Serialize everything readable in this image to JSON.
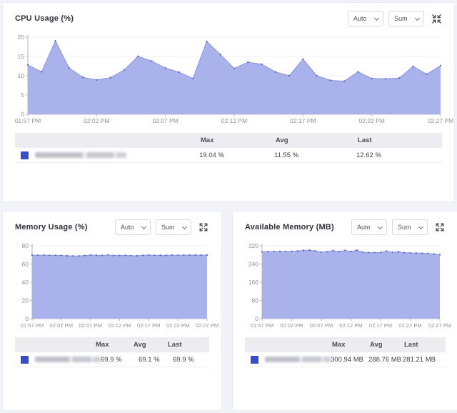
{
  "controls": {
    "interval_label": "Auto",
    "aggregation_label": "Sum"
  },
  "table_headers": {
    "max": "Max",
    "avg": "Avg",
    "last": "Last"
  },
  "accent": {
    "legend_swatch": "#3b4cc9",
    "area_fill": "#a9b2ea",
    "area_line": "#8793dd",
    "point_dot": "#5f6dbe"
  },
  "chart_data": [
    {
      "type": "area",
      "title": "CPU Usage (%)",
      "ylabel": "",
      "xlabel": "",
      "ylim": [
        0,
        20
      ],
      "yticks": [
        0,
        5,
        10,
        15,
        20
      ],
      "x_labels": [
        "01:57 PM",
        "02:02 PM",
        "02:07 PM",
        "02:12 PM",
        "02:17 PM",
        "02:22 PM",
        "02:27 PM"
      ],
      "series_name_blurred": true,
      "values": [
        12.8,
        11.0,
        19.04,
        12.0,
        9.6,
        8.9,
        9.5,
        11.5,
        15.0,
        13.8,
        12.0,
        10.9,
        9.3,
        18.9,
        15.5,
        11.9,
        13.5,
        13.0,
        11.0,
        10.0,
        14.3,
        10.0,
        8.8,
        8.6,
        11.0,
        9.3,
        9.2,
        9.4,
        12.4,
        10.4,
        12.62
      ],
      "stats": {
        "max": "19.04 %",
        "avg": "11.55 %",
        "last": "12.62 %"
      },
      "colors": {
        "fill": "#a9b2ea",
        "line": "#8793dd",
        "dot": "#5f6dbe"
      }
    },
    {
      "type": "area",
      "title": "Memory Usage (%)",
      "ylabel": "",
      "xlabel": "",
      "ylim": [
        0,
        80
      ],
      "yticks": [
        0,
        20,
        40,
        60,
        80
      ],
      "x_labels": [
        "01:57 PM",
        "02:02 PM",
        "02:07 PM",
        "02:12 PM",
        "02:17 PM",
        "02:22 PM",
        "02:27 PM"
      ],
      "series_name_blurred": true,
      "values": [
        69.8,
        69.6,
        69.7,
        69.5,
        69.6,
        69.4,
        69.0,
        68.8,
        68.9,
        69.3,
        69.8,
        69.6,
        69.4,
        69.9,
        69.5,
        69.3,
        69.5,
        69.2,
        69.0,
        69.6,
        69.8,
        69.5,
        69.6,
        69.4,
        69.7,
        69.6,
        69.8,
        69.7,
        69.8,
        69.7,
        69.9
      ],
      "stats": {
        "max": "69.9 %",
        "avg": "69.1 %",
        "last": "69.9 %"
      },
      "colors": {
        "fill": "#a9b2ea",
        "line": "#8793dd",
        "dot": "#5f6dbe"
      }
    },
    {
      "type": "area",
      "title": "Available Memory (MB)",
      "ylabel": "",
      "xlabel": "",
      "ylim": [
        0,
        320
      ],
      "yticks": [
        0,
        80,
        160,
        240,
        320
      ],
      "x_labels": [
        "01:57 PM",
        "02:02 PM",
        "02:07 PM",
        "02:12 PM",
        "02:17 PM",
        "02:22 PM",
        "02:27 PM"
      ],
      "series_name_blurred": true,
      "values": [
        293.5,
        294.0,
        294.5,
        295.0,
        294.5,
        295.5,
        297.0,
        299.5,
        300.94,
        297.0,
        292.5,
        294.0,
        299.0,
        294.5,
        299.5,
        295.0,
        300.5,
        292.0,
        290.5,
        290.0,
        291.0,
        296.5,
        291.0,
        294.0,
        290.0,
        288.5,
        288.0,
        287.5,
        286.5,
        284.0,
        281.21
      ],
      "stats": {
        "max": "300.94 MB",
        "avg": "288.76 MB",
        "last": "281.21 MB"
      },
      "colors": {
        "fill": "#a9b2ea",
        "line": "#8793dd",
        "dot": "#5f6dbe"
      }
    }
  ]
}
